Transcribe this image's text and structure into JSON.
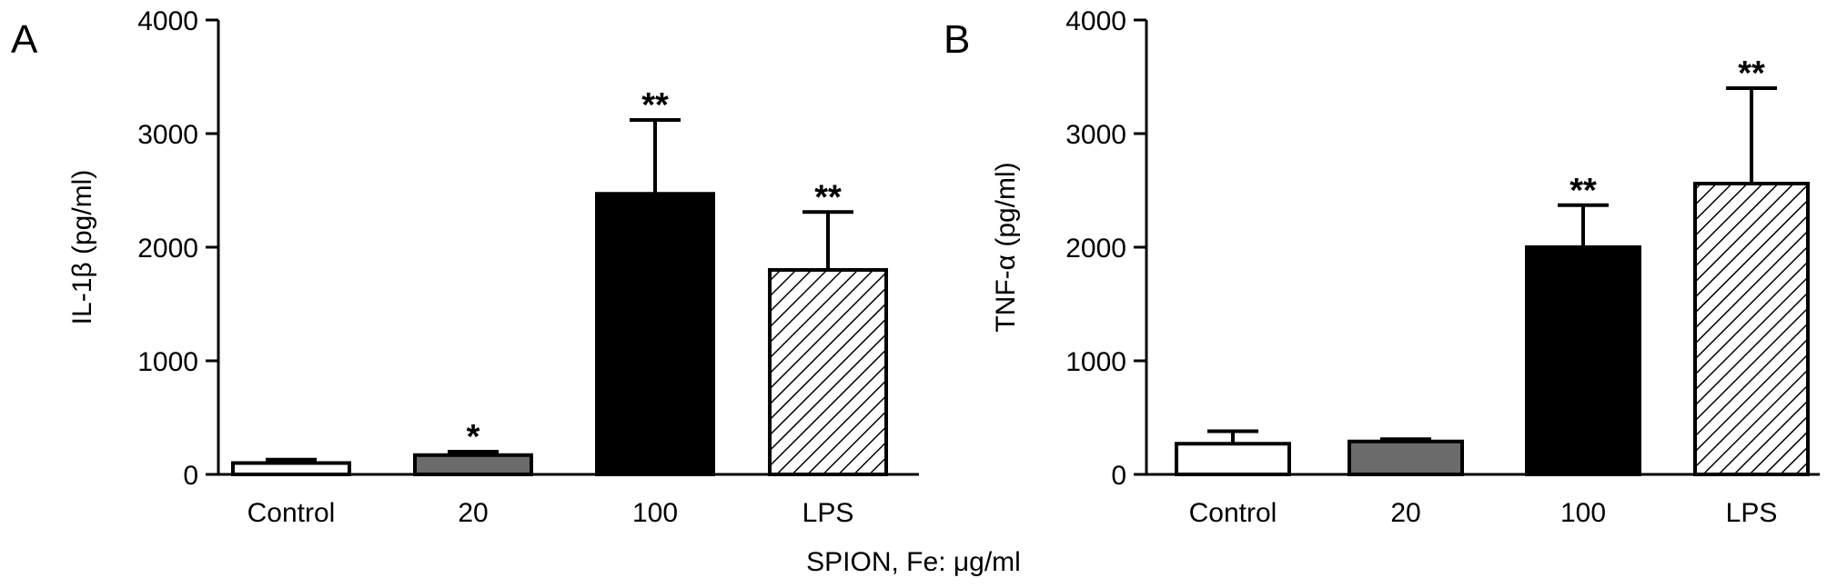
{
  "figure": {
    "shared_xlabel": "SPION, Fe: μg/ml",
    "colors": {
      "control": "#ffffff",
      "20": "#6b6b6b",
      "100": "#000000",
      "LPS": "hatched"
    }
  },
  "chart_data": [
    {
      "type": "bar",
      "panel": "A",
      "categories": [
        "Control",
        "20",
        "100",
        "LPS"
      ],
      "values": [
        100,
        170,
        2470,
        1800
      ],
      "errors": [
        30,
        30,
        650,
        510
      ],
      "significance": [
        "",
        "*",
        "**",
        "**"
      ],
      "ylabel": "IL-1β (pg/ml)",
      "ylim": [
        0,
        4000
      ],
      "yticks": [
        "0",
        "1000",
        "2000",
        "3000",
        "4000"
      ],
      "grid": false
    },
    {
      "type": "bar",
      "panel": "B",
      "categories": [
        "Control",
        "20",
        "100",
        "LPS"
      ],
      "values": [
        270,
        290,
        2000,
        2560
      ],
      "errors": [
        110,
        20,
        370,
        840
      ],
      "significance": [
        "",
        "",
        "**",
        "**"
      ],
      "ylabel": "TNF-α (pg/ml)",
      "ylim": [
        0,
        4000
      ],
      "yticks": [
        "0",
        "1000",
        "2000",
        "3000",
        "4000"
      ],
      "grid": false
    }
  ]
}
